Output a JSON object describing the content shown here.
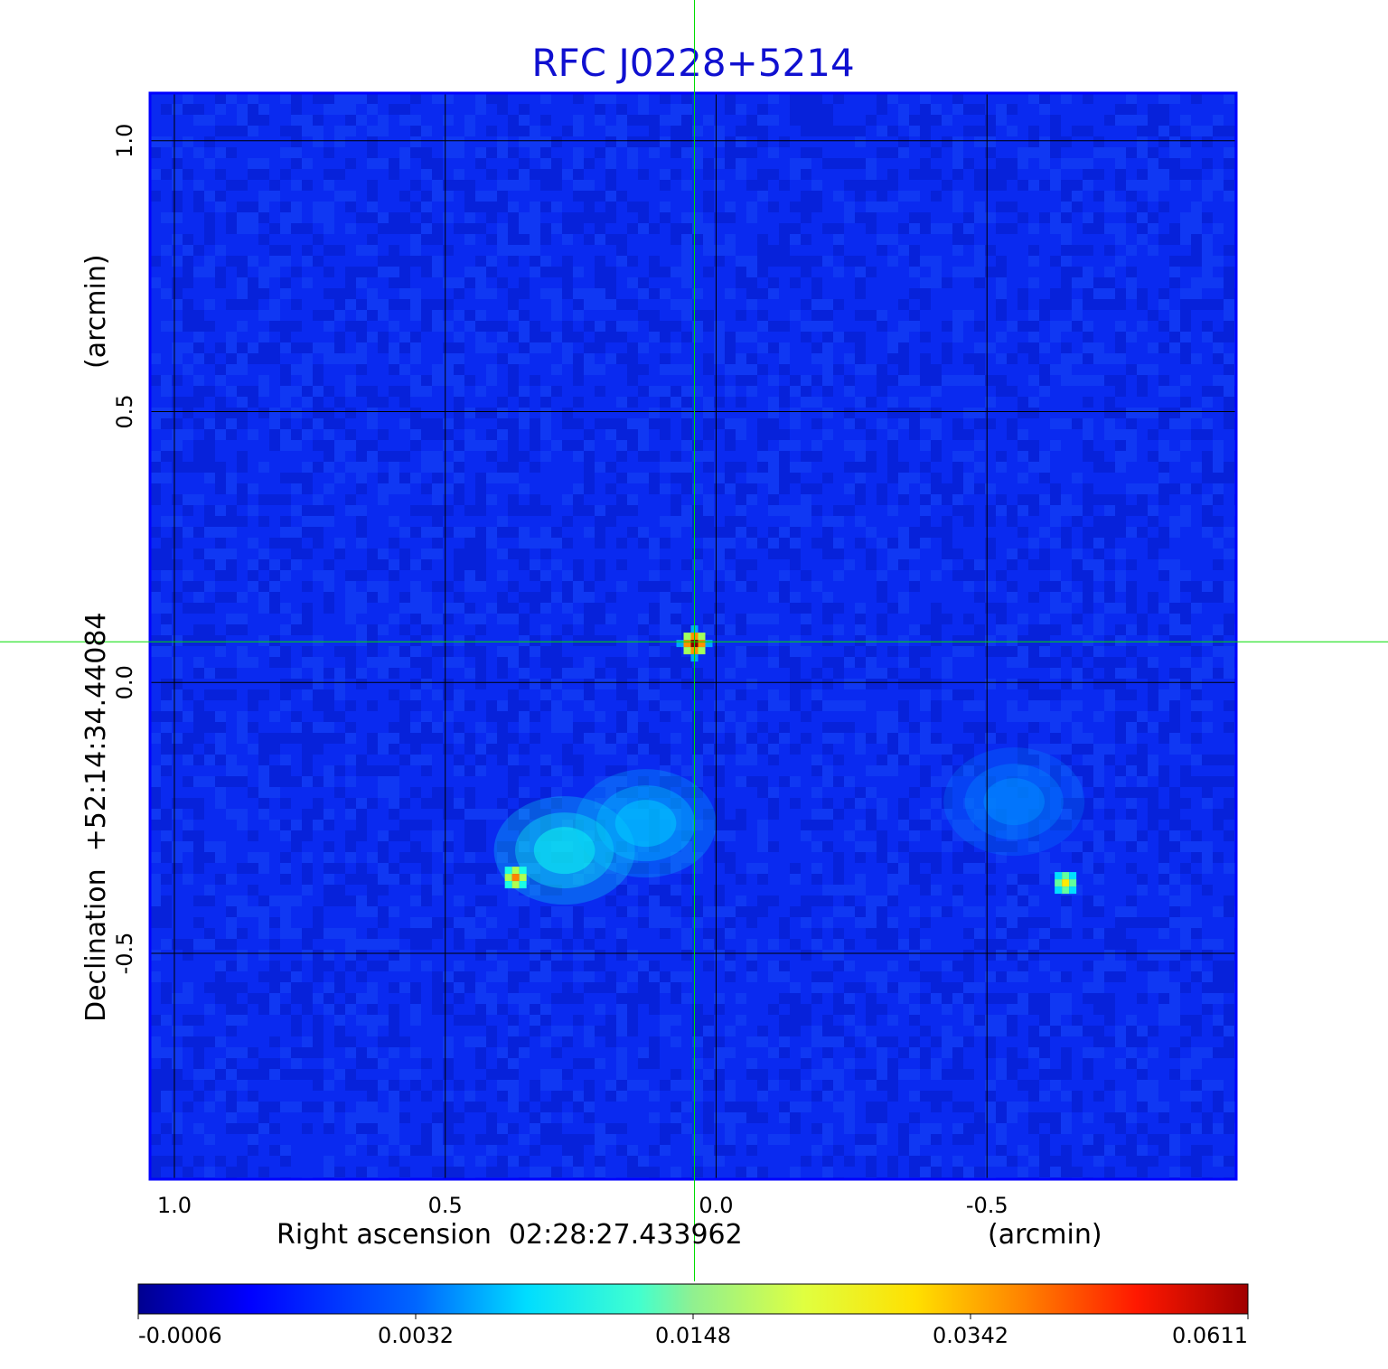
{
  "chart_data": {
    "type": "heatmap",
    "title": "RFC J0228+5214",
    "xlabel": "Right ascension  02:28:27.433962",
    "xunit": "(arcmin)",
    "ylabel": "Declination  +52:14:34.44084",
    "yunit": "(arcmin)",
    "xlim": [
      1.045,
      -0.96
    ],
    "ylim": [
      -0.917,
      1.088
    ],
    "xticks": [
      {
        "value": 1.0,
        "label": "1.0"
      },
      {
        "value": 0.5,
        "label": "0.5"
      },
      {
        "value": 0.0,
        "label": "0.0"
      },
      {
        "value": -0.5,
        "label": "-0.5"
      }
    ],
    "yticks": [
      {
        "value": 1.0,
        "label": "1.0"
      },
      {
        "value": 0.5,
        "label": "0.5"
      },
      {
        "value": 0.0,
        "label": "0.0"
      },
      {
        "value": -0.5,
        "label": "-0.5"
      }
    ],
    "grid": true,
    "colormap": "jet",
    "colorbar": {
      "position": "bottom",
      "ticks": [
        "-0.0006",
        "0.0032",
        "0.0148",
        "0.0342",
        "0.0611"
      ],
      "min": -0.0006,
      "max": 0.0611
    },
    "crosshair": {
      "x": 0.04,
      "y": 0.075,
      "color": "#00dd00"
    },
    "sources": [
      {
        "x": 0.04,
        "y": 0.072,
        "peak": 0.0611
      },
      {
        "x": 0.37,
        "y": -0.36,
        "peak": 0.034
      },
      {
        "x": -0.645,
        "y": -0.37,
        "peak": 0.026
      }
    ],
    "extended_emission": [
      {
        "x": 0.28,
        "y": -0.31,
        "peak": 0.009
      },
      {
        "x": 0.13,
        "y": -0.26,
        "peak": 0.006
      },
      {
        "x": -0.55,
        "y": -0.22,
        "peak": 0.003
      }
    ],
    "colors": {
      "title": "#1010d0",
      "grid": "#000000",
      "crosshair": "#00dd00",
      "frame": "#0000ff"
    }
  }
}
